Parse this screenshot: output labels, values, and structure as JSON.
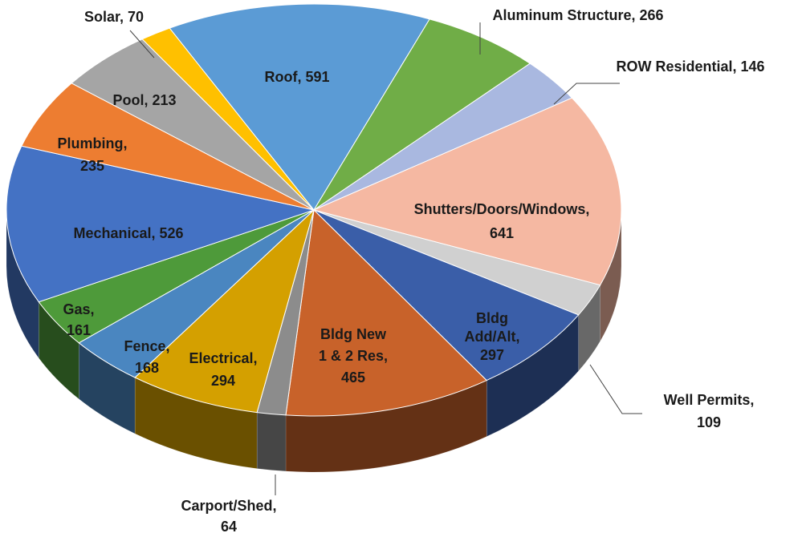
{
  "chart_data": {
    "type": "pie",
    "values": [
      591,
      266,
      146,
      641,
      109,
      297,
      465,
      64,
      294,
      168,
      161,
      526,
      235,
      213,
      70
    ],
    "value_labels": [
      [
        "Roof, 591"
      ],
      [
        "Aluminum Structure, 266"
      ],
      [
        "ROW Residential, 146"
      ],
      [
        "Shutters/Doors/Windows,",
        "641"
      ],
      [
        "Well Permits,",
        "109"
      ],
      [
        "Bldg",
        "Add/Alt,",
        "297"
      ],
      [
        "Bldg New",
        "1 & 2 Res,",
        "465"
      ],
      [
        "Carport/Shed,",
        "64"
      ],
      [
        "Electrical,",
        "294"
      ],
      [
        "Fence,",
        "168"
      ],
      [
        "Gas,",
        "161"
      ],
      [
        "Mechanical, 526"
      ],
      [
        "Plumbing,",
        "235"
      ],
      [
        "Pool, 213"
      ],
      [
        "Solar, 70"
      ]
    ],
    "colors": [
      "#5b9bd5",
      "#70ad47",
      "#a9b8e0",
      "#f5b8a2",
      "#d0d0d0",
      "#3a5ea8",
      "#c8622a",
      "#8c8c8c",
      "#d4a000",
      "#4a86c0",
      "#4e9a3a",
      "#4472c4",
      "#ed7d31",
      "#a5a5a5",
      "#ffc000"
    ]
  }
}
